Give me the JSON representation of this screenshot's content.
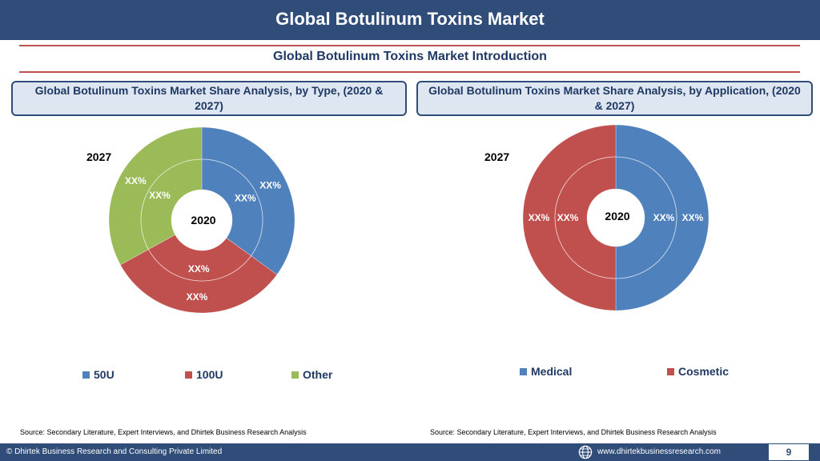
{
  "header": {
    "title": "Global Botulinum Toxins Market"
  },
  "section": {
    "subtitle": "Global Botulinum Toxins Market  Introduction"
  },
  "panels": [
    {
      "title": "Global Botulinum Toxins Market  Share Analysis, by Type, (2020 & 2027)",
      "outer_label": "2027",
      "center_label": "2020"
    },
    {
      "title": "Global Botulinum Toxins Market  Share Analysis, by Application, (2020 & 2027)",
      "outer_label": "2027",
      "center_label": "2020"
    }
  ],
  "chart_data": [
    {
      "type": "pie",
      "subtype": "doughnut",
      "title": "Global Botulinum Toxins Market  Share Analysis, by Type, (2020 & 2027)",
      "categories": [
        "50U",
        "100U",
        "Other"
      ],
      "colors": [
        "#4f81bd",
        "#c0504d",
        "#9bbb59"
      ],
      "series": [
        {
          "name": "2027",
          "values": [
            35,
            32,
            33
          ],
          "labels": [
            "XX%",
            "XX%",
            "XX%"
          ]
        },
        {
          "name": "2020",
          "values": [
            35,
            32,
            33
          ],
          "labels": [
            "XX%",
            "XX%",
            "XX%"
          ]
        }
      ],
      "legend_position": "bottom"
    },
    {
      "type": "pie",
      "subtype": "doughnut",
      "title": "Global Botulinum Toxins Market  Share Analysis, by Application, (2020 & 2027)",
      "categories": [
        "Medical",
        "Cosmetic"
      ],
      "colors": [
        "#4f81bd",
        "#c0504d"
      ],
      "series": [
        {
          "name": "2027",
          "values": [
            50,
            50
          ],
          "labels": [
            "XX%",
            "XX%"
          ]
        },
        {
          "name": "2020",
          "values": [
            50,
            50
          ],
          "labels": [
            "XX%",
            "XX%"
          ]
        }
      ],
      "legend_position": "bottom"
    }
  ],
  "sources": [
    "Source: Secondary Literature, Expert Interviews, and Dhirtek Business Research Analysis",
    "Source: Secondary Literature, Expert Interviews, and Dhirtek Business Research Analysis"
  ],
  "footer": {
    "copyright": "© Dhirtek Business Research and Consulting Private Limited",
    "website": "www.dhirtekbusinessresearch.com",
    "page_number": "9",
    "icon": "globe-icon"
  }
}
